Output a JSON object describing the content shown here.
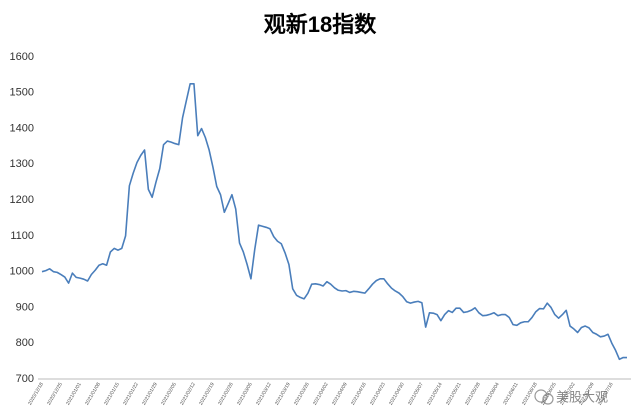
{
  "chart_data": {
    "type": "line",
    "title": "观新18指数",
    "watermark": "美股大观",
    "color": "#4a7ebb",
    "ylim": [
      700,
      1600
    ],
    "yticks": [
      700,
      800,
      900,
      1000,
      1100,
      1200,
      1300,
      1400,
      1500,
      1600
    ],
    "grid": false,
    "categories": [
      "2020/12/18",
      null,
      null,
      null,
      null,
      "2020/12/25",
      null,
      null,
      null,
      null,
      "2021/01/01",
      null,
      null,
      null,
      null,
      "2021/01/08",
      null,
      null,
      null,
      null,
      "2021/01/15",
      null,
      null,
      null,
      null,
      "2021/01/22",
      null,
      null,
      null,
      null,
      "2021/01/29",
      null,
      null,
      null,
      null,
      "2021/02/05",
      null,
      null,
      null,
      null,
      "2021/02/12",
      null,
      null,
      null,
      null,
      "2021/02/19",
      null,
      null,
      null,
      null,
      "2021/02/26",
      null,
      null,
      null,
      null,
      "2021/03/05",
      null,
      null,
      null,
      null,
      "2021/03/12",
      null,
      null,
      null,
      null,
      "2021/03/19",
      null,
      null,
      null,
      null,
      "2021/03/26",
      null,
      null,
      null,
      null,
      "2021/04/02",
      null,
      null,
      null,
      null,
      "2021/04/09",
      null,
      null,
      null,
      null,
      "2021/04/16",
      null,
      null,
      null,
      null,
      "2021/04/23",
      null,
      null,
      null,
      null,
      "2021/04/30",
      null,
      null,
      null,
      null,
      "2021/05/07",
      null,
      null,
      null,
      null,
      "2021/05/14",
      null,
      null,
      null,
      null,
      "2021/05/21",
      null,
      null,
      null,
      null,
      "2021/05/28",
      null,
      null,
      null,
      null,
      "2021/06/04",
      null,
      null,
      null,
      null,
      "2021/06/11",
      null,
      null,
      null,
      null,
      "2021/06/18",
      null,
      null,
      null,
      null,
      "2021/06/25",
      null,
      null,
      null,
      null,
      "2021/07/02",
      null,
      null,
      null,
      null,
      "2021/07/09",
      null,
      null,
      null,
      null,
      "2021/07/16",
      null,
      null,
      null,
      null
    ],
    "values": [
      1000,
      1003,
      1008,
      1000,
      998,
      992,
      985,
      968,
      996,
      984,
      982,
      979,
      974,
      992,
      1004,
      1018,
      1022,
      1018,
      1055,
      1065,
      1060,
      1065,
      1100,
      1240,
      1275,
      1305,
      1325,
      1340,
      1230,
      1208,
      1250,
      1288,
      1355,
      1365,
      1362,
      1358,
      1355,
      1430,
      1478,
      1525,
      1525,
      1380,
      1400,
      1375,
      1340,
      1292,
      1238,
      1215,
      1166,
      1190,
      1215,
      1175,
      1080,
      1055,
      1020,
      980,
      1062,
      1130,
      1127,
      1124,
      1120,
      1098,
      1085,
      1078,
      1052,
      1020,
      952,
      934,
      928,
      924,
      940,
      965,
      966,
      964,
      960,
      972,
      965,
      955,
      948,
      946,
      947,
      942,
      945,
      944,
      942,
      940,
      952,
      965,
      975,
      980,
      980,
      966,
      954,
      946,
      940,
      930,
      916,
      912,
      915,
      917,
      913,
      845,
      885,
      884,
      880,
      863,
      880,
      891,
      886,
      898,
      898,
      886,
      888,
      892,
      899,
      885,
      877,
      878,
      881,
      885,
      877,
      880,
      880,
      872,
      852,
      850,
      857,
      860,
      860,
      872,
      888,
      897,
      896,
      912,
      900,
      880,
      870,
      880,
      892,
      848,
      840,
      830,
      844,
      848,
      843,
      830,
      825,
      818,
      820,
      825,
      800,
      780,
      755,
      760,
      760
    ]
  }
}
